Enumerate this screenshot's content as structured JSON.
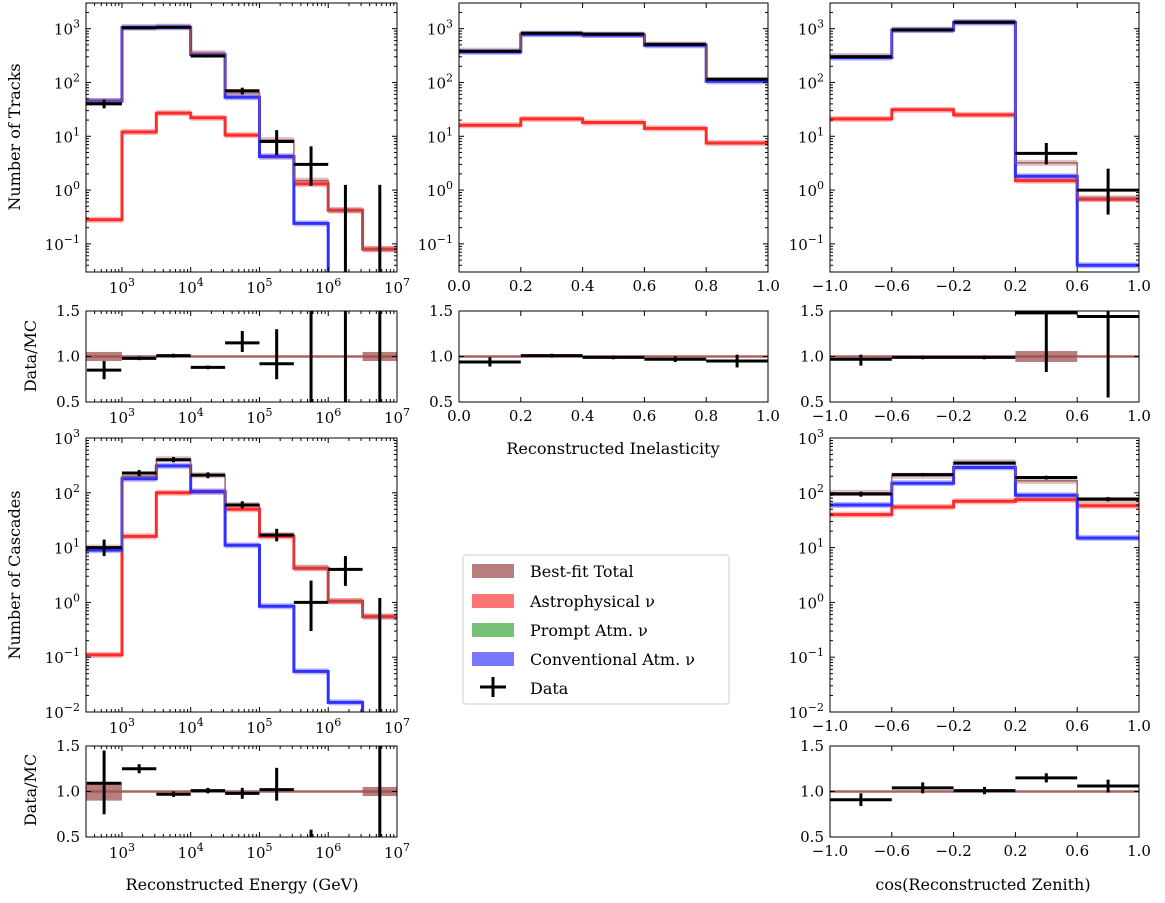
{
  "colors": {
    "total": "#a05252",
    "astro": "#ff2a2a",
    "prompt": "#2ca02c",
    "conv": "#3030ff",
    "data": "#000000"
  },
  "legend": {
    "total": "Best-fit Total",
    "astro": "Astrophysical ν",
    "prompt": "Prompt Atm. ν",
    "conv": "Conventional Atm. ν",
    "data": "Data"
  },
  "labels": {
    "tracks_y": "Number of Tracks",
    "cascades_y": "Number of Cascades",
    "ratio_y": "Data/MC",
    "energy_x": "Reconstructed Energy (GeV)",
    "inel_x": "Reconstructed Inelasticity",
    "zen_x": "cos(Reconstructed Zenith)"
  },
  "chart_data": [
    {
      "id": "tracks_energy",
      "type": "histogram",
      "ylabel": "Number of Tracks",
      "xscale": "log",
      "yscale": "log",
      "xlim": [
        300,
        10000000
      ],
      "ylim": [
        0.03,
        3000
      ],
      "bins": [
        300,
        1000,
        3162,
        10000,
        31623,
        100000,
        316228,
        1000000,
        3162278,
        10000000
      ],
      "astro": [
        0.28,
        12,
        27,
        22,
        10.5,
        4.2,
        1.3,
        0.42,
        0.08
      ],
      "conv": [
        45,
        1050,
        1060,
        330,
        53,
        4.2,
        0.24,
        0.0001,
        0.0001
      ],
      "total": [
        45,
        1060,
        1090,
        350,
        64,
        8.5,
        1.5,
        0.42,
        0.08
      ],
      "data": {
        "x": [
          550,
          1778,
          5623,
          17783,
          56234,
          177828,
          562341,
          1778279,
          5623413
        ],
        "y": [
          40,
          1040,
          1060,
          310,
          70,
          8,
          3,
          null,
          null
        ],
        "err": [
          [
            33,
            48
          ],
          [
            1000,
            1080
          ],
          [
            1020,
            1100
          ],
          [
            290,
            330
          ],
          [
            60,
            80
          ],
          [
            4.5,
            13
          ],
          [
            1.2,
            6.5
          ],
          [
            0.03,
            1.25
          ],
          [
            0.03,
            1.25
          ]
        ]
      }
    },
    {
      "id": "tracks_inel",
      "type": "histogram",
      "xscale": "linear",
      "yscale": "log",
      "xlim": [
        0,
        1
      ],
      "ylim": [
        0.03,
        3000
      ],
      "bins": [
        0,
        0.2,
        0.4,
        0.6,
        0.8,
        1.0
      ],
      "astro": [
        16,
        21,
        18,
        14,
        7.5
      ],
      "conv": [
        370,
        790,
        760,
        490,
        105
      ],
      "total": [
        390,
        810,
        780,
        510,
        112
      ],
      "data": {
        "x": [
          0.1,
          0.3,
          0.5,
          0.7,
          0.9
        ],
        "y": [
          380,
          820,
          790,
          510,
          115
        ]
      }
    },
    {
      "id": "tracks_zen",
      "type": "histogram",
      "xscale": "linear",
      "yscale": "log",
      "xlim": [
        -1,
        1
      ],
      "ylim": [
        0.03,
        3000
      ],
      "bins": [
        -1,
        -0.6,
        -0.2,
        0.2,
        0.6,
        1.0
      ],
      "astro": [
        21,
        31,
        25,
        1.5,
        0.68
      ],
      "conv": [
        290,
        940,
        1300,
        1.8,
        0.04
      ],
      "total": [
        310,
        960,
        1320,
        3.2,
        0.7
      ],
      "data": {
        "x": [
          -0.8,
          -0.4,
          0,
          0.4,
          0.8
        ],
        "y": [
          300,
          950,
          1320,
          4.8,
          1.0
        ],
        "err": [
          [
            280,
            320
          ],
          [
            920,
            980
          ],
          [
            1280,
            1360
          ],
          [
            3,
            7.5
          ],
          [
            0.35,
            2.5
          ]
        ]
      }
    },
    {
      "id": "tracks_energy_ratio",
      "type": "ratio",
      "ylabel": "Data/MC",
      "xscale": "log",
      "xlim": [
        300,
        10000000
      ],
      "ylim": [
        0.5,
        1.5
      ],
      "bands": [
        [
          300,
          1000,
          0.95,
          1.05
        ],
        [
          3162278,
          10000000,
          0.95,
          1.05
        ]
      ],
      "x": [
        550,
        1778,
        5623,
        17783,
        56234,
        177828,
        562341,
        1778279,
        5623413
      ],
      "y": [
        0.85,
        0.98,
        1.01,
        0.88,
        1.15,
        0.92,
        null,
        null,
        null
      ],
      "err": [
        [
          0.75,
          0.95
        ],
        [
          0.96,
          1.0
        ],
        [
          0.99,
          1.03
        ],
        [
          0.86,
          0.9
        ],
        [
          1.05,
          1.28
        ],
        [
          0.75,
          1.3
        ],
        [
          0.5,
          1.5
        ],
        [
          0.5,
          1.5
        ],
        [
          0.5,
          1.5
        ]
      ]
    },
    {
      "id": "tracks_inel_ratio",
      "type": "ratio",
      "xscale": "linear",
      "xlim": [
        0,
        1
      ],
      "ylim": [
        0.5,
        1.5
      ],
      "bands": [],
      "x": [
        0.1,
        0.3,
        0.5,
        0.7,
        0.9
      ],
      "y": [
        0.94,
        1.01,
        0.99,
        0.97,
        0.95
      ],
      "err": [
        [
          0.89,
          0.99
        ],
        [
          0.99,
          1.03
        ],
        [
          0.97,
          1.01
        ],
        [
          0.94,
          1.0
        ],
        [
          0.88,
          1.02
        ]
      ]
    },
    {
      "id": "tracks_zen_ratio",
      "type": "ratio",
      "xscale": "linear",
      "xlim": [
        -1,
        1
      ],
      "ylim": [
        0.5,
        1.5
      ],
      "bands": [
        [
          0.2,
          0.6,
          0.94,
          1.06
        ]
      ],
      "x": [
        -0.8,
        -0.4,
        0,
        0.4,
        0.8
      ],
      "y": [
        0.97,
        0.99,
        0.99,
        1.48,
        1.44
      ],
      "err": [
        [
          0.9,
          1.02
        ],
        [
          0.97,
          1.01
        ],
        [
          0.97,
          1.01
        ],
        [
          0.83,
          1.5
        ],
        [
          0.55,
          1.5
        ]
      ]
    },
    {
      "id": "cascades_energy",
      "type": "histogram",
      "ylabel": "Number of Cascades",
      "xscale": "log",
      "yscale": "log",
      "xlim": [
        300,
        10000000
      ],
      "ylim": [
        0.01,
        1000
      ],
      "bins": [
        300,
        1000,
        3162,
        10000,
        31623,
        100000,
        316228,
        1000000,
        3162278,
        10000000
      ],
      "astro": [
        0.11,
        16,
        100,
        105,
        50,
        16,
        4.2,
        1.05,
        0.55
      ],
      "conv": [
        9,
        180,
        310,
        105,
        11,
        0.85,
        0.055,
        0.015,
        0.0001
      ],
      "total": [
        10,
        200,
        410,
        210,
        60,
        17,
        4.3,
        1.05,
        0.55
      ],
      "data": {
        "x": [
          550,
          1778,
          5623,
          17783,
          56234,
          177828,
          562341,
          1778279,
          5623413
        ],
        "y": [
          10,
          230,
          400,
          210,
          60,
          17,
          1,
          4,
          null
        ],
        "err": [
          [
            7,
            14
          ],
          [
            200,
            260
          ],
          [
            360,
            450
          ],
          [
            185,
            235
          ],
          [
            52,
            70
          ],
          [
            13,
            22
          ],
          [
            0.3,
            2.5
          ],
          [
            2,
            7
          ],
          [
            0.01,
            1.2
          ]
        ]
      }
    },
    {
      "id": "cascades_zen",
      "type": "histogram",
      "xscale": "linear",
      "yscale": "log",
      "xlim": [
        -1,
        1
      ],
      "ylim": [
        0.01,
        1000
      ],
      "bins": [
        -1,
        -0.6,
        -0.2,
        0.2,
        0.6,
        1.0
      ],
      "astro": [
        40,
        55,
        70,
        75,
        58
      ],
      "conv": [
        60,
        150,
        290,
        90,
        15
      ],
      "total": [
        100,
        205,
        360,
        165,
        73
      ],
      "data": {
        "x": [
          -0.8,
          -0.4,
          0,
          0.4,
          0.8
        ],
        "y": [
          95,
          215,
          350,
          190,
          77
        ],
        "err": [
          [
            85,
            105
          ],
          [
            200,
            230
          ],
          [
            330,
            370
          ],
          [
            175,
            205
          ],
          [
            70,
            84
          ]
        ]
      }
    },
    {
      "id": "cascades_energy_ratio",
      "type": "ratio",
      "ylabel": "Data/MC",
      "xscale": "log",
      "xlim": [
        300,
        10000000
      ],
      "ylim": [
        0.5,
        1.5
      ],
      "bands": [
        [
          300,
          1000,
          0.9,
          1.1
        ],
        [
          3162278,
          10000000,
          0.95,
          1.05
        ]
      ],
      "x": [
        550,
        1778,
        5623,
        17783,
        56234,
        177828,
        562341,
        1778279,
        5623413
      ],
      "y": [
        1.09,
        1.25,
        0.97,
        1.01,
        0.98,
        1.02,
        null,
        null,
        null
      ],
      "err": [
        [
          0.75,
          1.45
        ],
        [
          1.2,
          1.3
        ],
        [
          0.94,
          1.0
        ],
        [
          0.98,
          1.04
        ],
        [
          0.92,
          1.04
        ],
        [
          0.9,
          1.26
        ],
        [
          0.5,
          0.58
        ],
        [
          0.5,
          0.5
        ],
        [
          0.5,
          1.5
        ]
      ]
    },
    {
      "id": "cascades_zen_ratio",
      "type": "ratio",
      "xscale": "linear",
      "xlim": [
        -1,
        1
      ],
      "ylim": [
        0.5,
        1.5
      ],
      "bands": [],
      "x": [
        -0.8,
        -0.4,
        0,
        0.4,
        0.8
      ],
      "y": [
        0.91,
        1.04,
        1.01,
        1.15,
        1.06
      ],
      "err": [
        [
          0.84,
          0.98
        ],
        [
          0.98,
          1.1
        ],
        [
          0.97,
          1.05
        ],
        [
          1.1,
          1.2
        ],
        [
          0.99,
          1.13
        ]
      ]
    }
  ]
}
